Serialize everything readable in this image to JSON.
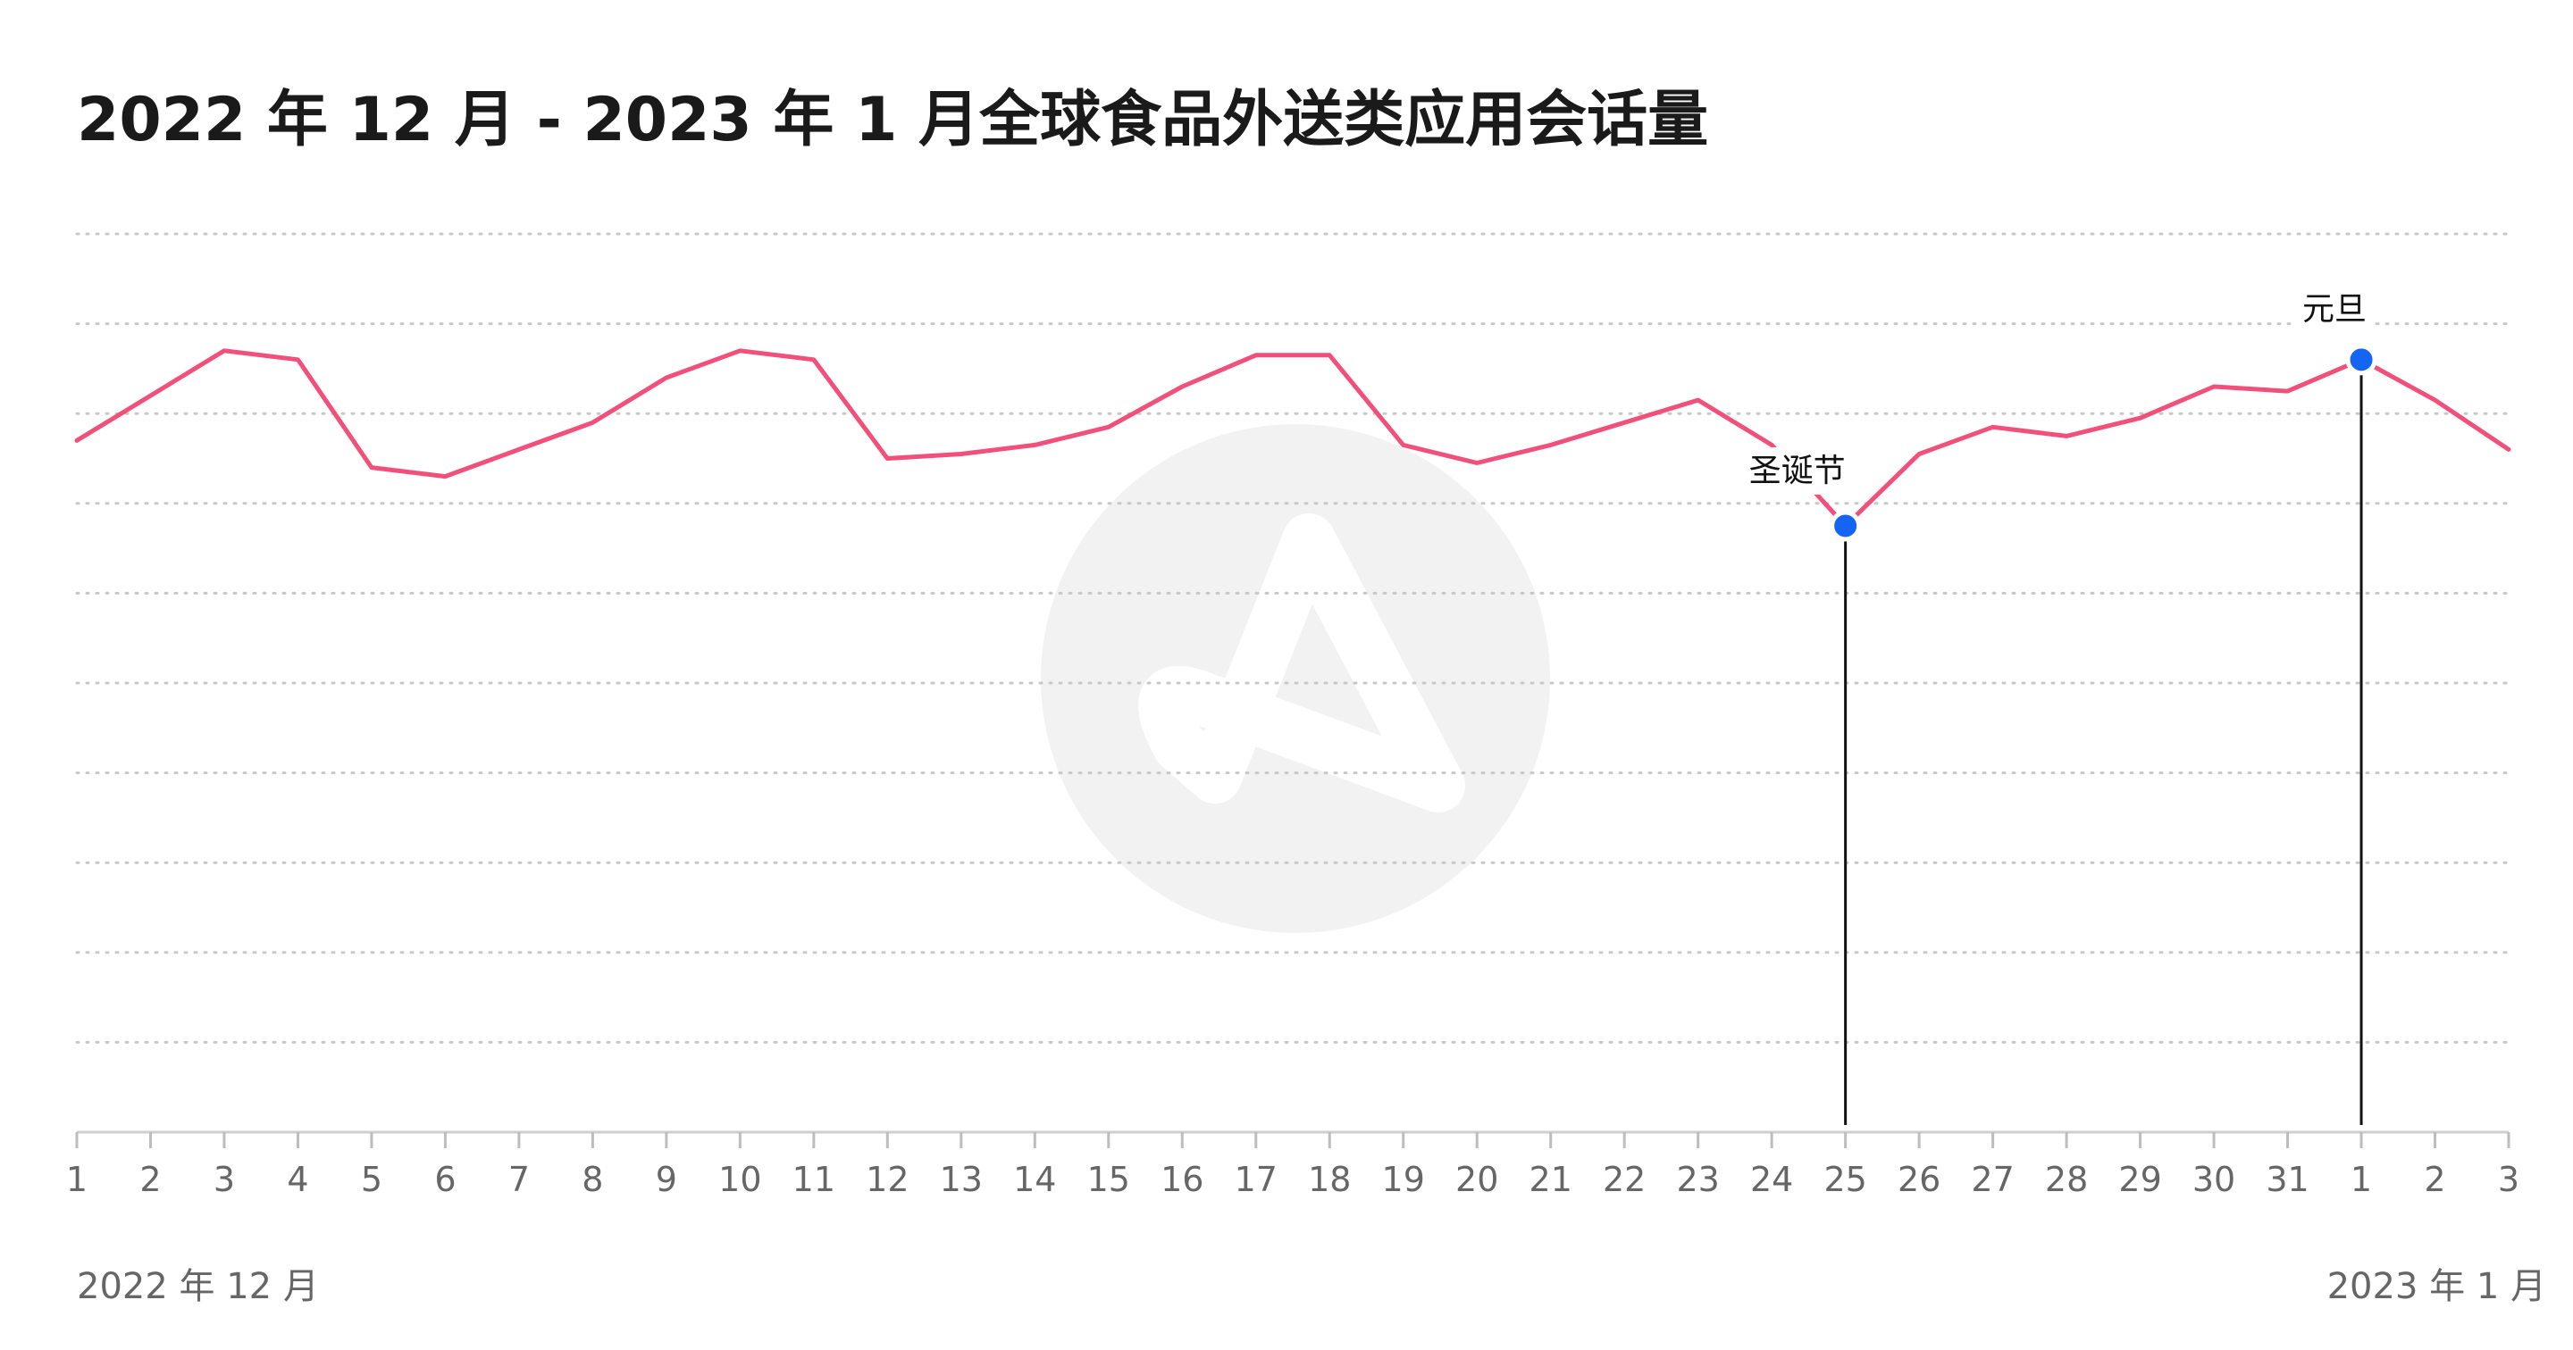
{
  "chart_data": {
    "type": "line",
    "title": "2022 年 12 月 - 2023 年 1 月全球食品外送类应用会话量",
    "xlabel": "",
    "ylabel": "",
    "categories": [
      "1",
      "2",
      "3",
      "4",
      "5",
      "6",
      "7",
      "8",
      "9",
      "10",
      "11",
      "12",
      "13",
      "14",
      "15",
      "16",
      "17",
      "18",
      "19",
      "20",
      "21",
      "22",
      "23",
      "24",
      "25",
      "26",
      "27",
      "28",
      "29",
      "30",
      "31",
      "1",
      "2",
      "3"
    ],
    "period_labels": {
      "start": "2022 年 12 月",
      "end": "2023 年 1 月"
    },
    "series": [
      {
        "values": [
          77,
          82,
          87,
          86,
          74,
          73,
          76,
          79,
          84,
          87,
          86,
          75,
          75.5,
          76.5,
          78.5,
          83,
          86.5,
          86.5,
          76.5,
          74.5,
          76.5,
          79,
          81.5,
          76.5,
          67.5,
          75.5,
          78.5,
          77.5,
          79.5,
          83,
          82.5,
          86,
          81.5,
          76
        ],
        "color": "#f0507a"
      }
    ],
    "highlight_color": "#1565f5",
    "annotations": [
      {
        "index": 24,
        "label": "圣诞节",
        "position": "left"
      },
      {
        "index": 31,
        "label": "元旦",
        "position": "top"
      }
    ],
    "ylim": [
      0,
      100
    ],
    "y_tick_labels_shown": false,
    "grid": true,
    "grid_style": "dotted horizontal",
    "legend": "none",
    "watermark": "app-logo"
  }
}
